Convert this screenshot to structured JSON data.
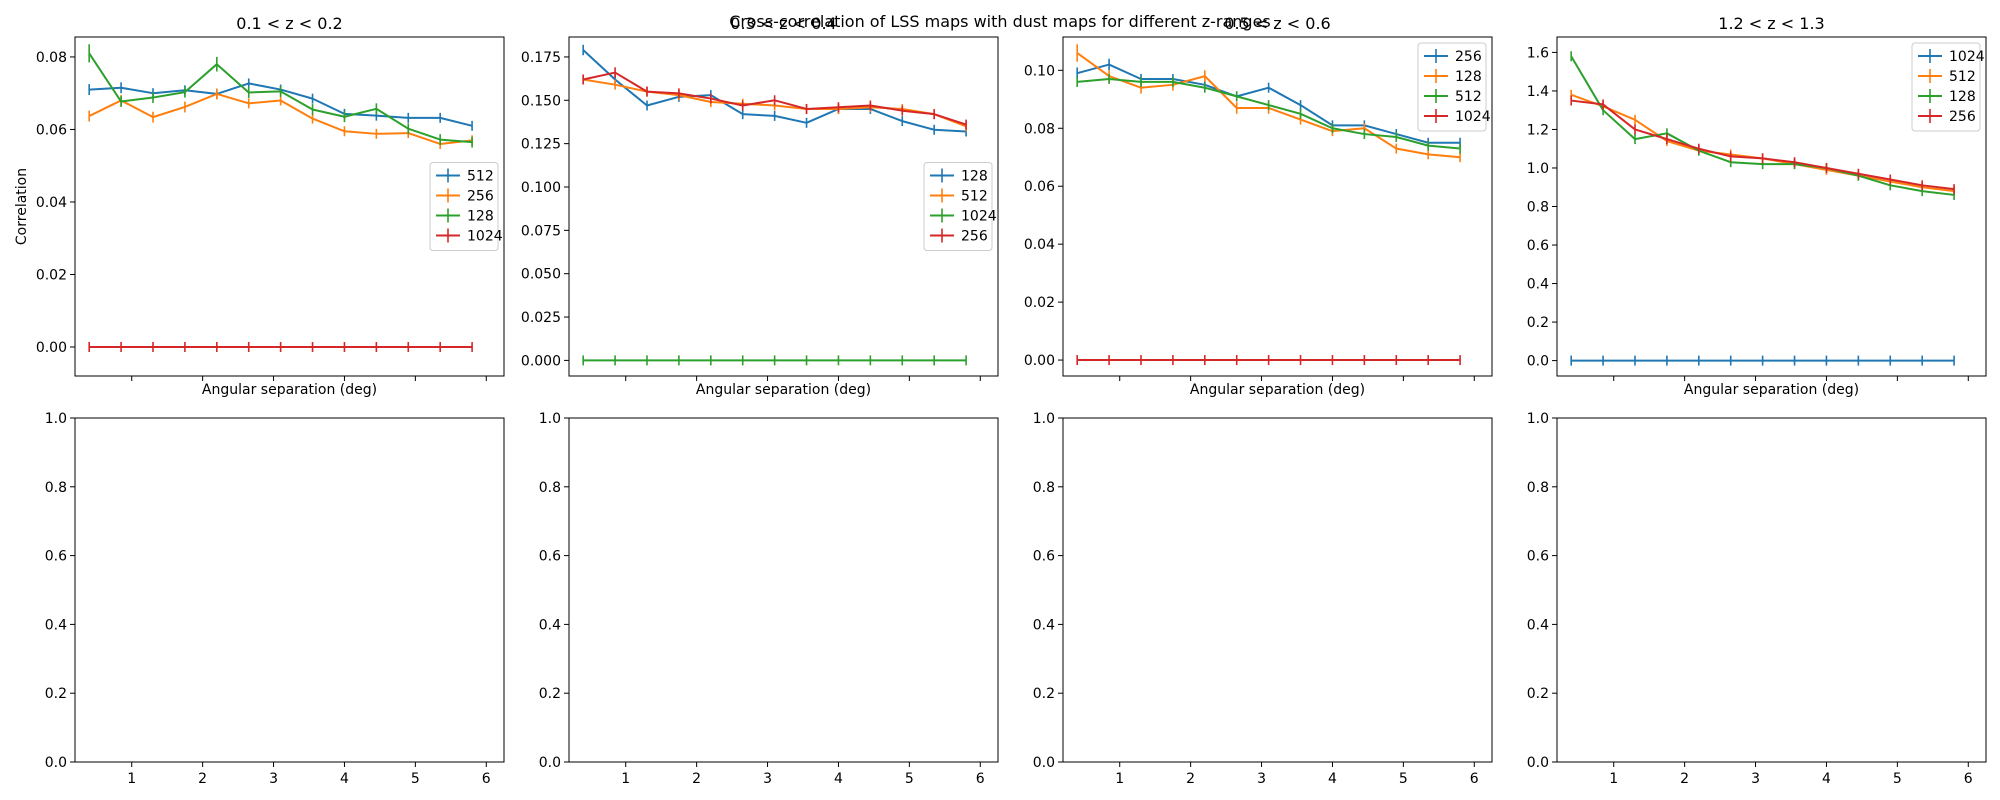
{
  "figure": {
    "suptitle": "Cross-correlation of LSS maps with dust maps for different z-ranges",
    "colors": {
      "512": "#1f77b4",
      "256": "#ff7f0e",
      "128": "#2ca02c",
      "1024": "#d62728",
      "blue": "#1f77b4",
      "orange": "#ff7f0e",
      "green": "#2ca02c",
      "red": "#d62728"
    }
  },
  "chart_data": [
    {
      "type": "line",
      "title": "0.1 < z < 0.2",
      "xlabel": "Angular separation (deg)",
      "ylabel": "Correlation",
      "xlim": [
        0.2,
        6.25
      ],
      "ylim": [
        -0.008,
        0.0855
      ],
      "yticks": [
        0.0,
        0.02,
        0.04,
        0.06,
        0.08
      ],
      "ytick_labels": [
        "0.00",
        "0.02",
        "0.04",
        "0.06",
        "0.08"
      ],
      "xticks": [
        1,
        2,
        3,
        4,
        5,
        6
      ],
      "show_xtick_labels": false,
      "legend": "center-right",
      "x": [
        0.4,
        0.85,
        1.3,
        1.75,
        2.2,
        2.65,
        3.1,
        3.55,
        4.0,
        4.45,
        4.9,
        5.35,
        5.8
      ],
      "series": [
        {
          "name": "512",
          "color": "#1f77b4",
          "values": [
            0.071,
            0.0715,
            0.07,
            0.0708,
            0.0698,
            0.0727,
            0.071,
            0.0685,
            0.0643,
            0.0638,
            0.0632,
            0.0632,
            0.061
          ],
          "err": [
            0.0015,
            0.0015,
            0.0012,
            0.0012,
            0.0012,
            0.0012,
            0.0012,
            0.0012,
            0.0012,
            0.0012,
            0.0012,
            0.0012,
            0.0012
          ]
        },
        {
          "name": "256",
          "color": "#ff7f0e",
          "values": [
            0.0637,
            0.068,
            0.0634,
            0.0662,
            0.0698,
            0.0672,
            0.068,
            0.063,
            0.0595,
            0.0588,
            0.059,
            0.056,
            0.057
          ],
          "err": [
            0.0015,
            0.0015,
            0.0015,
            0.0015,
            0.0015,
            0.0012,
            0.0012,
            0.0012,
            0.0012,
            0.0012,
            0.0012,
            0.0012,
            0.0012
          ]
        },
        {
          "name": "128",
          "color": "#2ca02c",
          "values": [
            0.081,
            0.0677,
            0.0688,
            0.0703,
            0.078,
            0.0702,
            0.0705,
            0.0655,
            0.0635,
            0.0657,
            0.0602,
            0.0572,
            0.0565
          ],
          "err": [
            0.0025,
            0.0015,
            0.0015,
            0.0015,
            0.002,
            0.0015,
            0.0015,
            0.0015,
            0.0015,
            0.0015,
            0.0015,
            0.0015,
            0.0015
          ]
        },
        {
          "name": "1024",
          "color": "#d62728",
          "values": [
            0,
            0,
            0,
            0,
            0,
            0,
            0,
            0,
            0,
            0,
            0,
            0,
            0
          ],
          "err": [
            0,
            0,
            0,
            0,
            0,
            0,
            0,
            0,
            0,
            0,
            0,
            0,
            0
          ]
        }
      ]
    },
    {
      "type": "line",
      "title": "0.3 < z < 0.4",
      "xlabel": "Angular separation (deg)",
      "ylabel": "",
      "xlim": [
        0.2,
        6.25
      ],
      "ylim": [
        -0.009,
        0.1865
      ],
      "yticks": [
        0.0,
        0.025,
        0.05,
        0.075,
        0.1,
        0.125,
        0.15,
        0.175
      ],
      "ytick_labels": [
        "0.000",
        "0.025",
        "0.050",
        "0.075",
        "0.100",
        "0.125",
        "0.150",
        "0.175"
      ],
      "xticks": [
        1,
        2,
        3,
        4,
        5,
        6
      ],
      "show_xtick_labels": false,
      "legend": "center-right",
      "x": [
        0.4,
        0.85,
        1.3,
        1.75,
        2.2,
        2.65,
        3.1,
        3.55,
        4.0,
        4.45,
        4.9,
        5.35,
        5.8
      ],
      "series": [
        {
          "name": "128",
          "color": "#1f77b4",
          "values": [
            0.179,
            0.162,
            0.147,
            0.152,
            0.153,
            0.142,
            0.141,
            0.137,
            0.145,
            0.145,
            0.138,
            0.133,
            0.132
          ],
          "err": [
            0.003,
            0.002,
            0.002,
            0.002,
            0.002,
            0.002,
            0.002,
            0.002,
            0.002,
            0.002,
            0.002,
            0.002,
            0.002
          ]
        },
        {
          "name": "512",
          "color": "#ff7f0e",
          "values": [
            0.162,
            0.159,
            0.155,
            0.153,
            0.149,
            0.148,
            0.147,
            0.145,
            0.145,
            0.146,
            0.145,
            0.142,
            0.135
          ],
          "err": [
            0.002,
            0.002,
            0.002,
            0.002,
            0.002,
            0.002,
            0.002,
            0.002,
            0.002,
            0.002,
            0.002,
            0.002,
            0.002
          ]
        },
        {
          "name": "1024",
          "color": "#2ca02c",
          "values": [
            0,
            0,
            0,
            0,
            0,
            0,
            0,
            0,
            0,
            0,
            0,
            0,
            0
          ],
          "err": [
            0,
            0,
            0,
            0,
            0,
            0,
            0,
            0,
            0,
            0,
            0,
            0,
            0
          ]
        },
        {
          "name": "256",
          "color": "#d62728",
          "values": [
            0.162,
            0.166,
            0.155,
            0.154,
            0.151,
            0.147,
            0.15,
            0.145,
            0.146,
            0.147,
            0.144,
            0.142,
            0.136
          ],
          "err": [
            0.002,
            0.003,
            0.002,
            0.002,
            0.002,
            0.002,
            0.002,
            0.002,
            0.002,
            0.002,
            0.002,
            0.002,
            0.002
          ]
        }
      ]
    },
    {
      "type": "line",
      "title": "0.5 < z < 0.6",
      "xlabel": "Angular separation (deg)",
      "ylabel": "",
      "xlim": [
        0.2,
        6.25
      ],
      "ylim": [
        -0.0055,
        0.1115
      ],
      "yticks": [
        0.0,
        0.02,
        0.04,
        0.06,
        0.08,
        0.1
      ],
      "ytick_labels": [
        "0.00",
        "0.02",
        "0.04",
        "0.06",
        "0.08",
        "0.10"
      ],
      "xticks": [
        1,
        2,
        3,
        4,
        5,
        6
      ],
      "show_xtick_labels": false,
      "legend": "top-right",
      "x": [
        0.4,
        0.85,
        1.3,
        1.75,
        2.2,
        2.65,
        3.1,
        3.55,
        4.0,
        4.45,
        4.9,
        5.35,
        5.8
      ],
      "series": [
        {
          "name": "256",
          "color": "#1f77b4",
          "values": [
            0.099,
            0.102,
            0.097,
            0.097,
            0.095,
            0.091,
            0.094,
            0.088,
            0.081,
            0.081,
            0.078,
            0.075,
            0.075
          ],
          "err": [
            0.002,
            0.002,
            0.0015,
            0.0015,
            0.0015,
            0.0015,
            0.0015,
            0.0015,
            0.0015,
            0.0015,
            0.0015,
            0.0015,
            0.0015
          ]
        },
        {
          "name": "128",
          "color": "#ff7f0e",
          "values": [
            0.106,
            0.098,
            0.094,
            0.095,
            0.098,
            0.087,
            0.087,
            0.083,
            0.079,
            0.08,
            0.073,
            0.071,
            0.07
          ],
          "err": [
            0.003,
            0.002,
            0.002,
            0.002,
            0.002,
            0.002,
            0.002,
            0.0015,
            0.0015,
            0.0015,
            0.0015,
            0.0015,
            0.0015
          ]
        },
        {
          "name": "512",
          "color": "#2ca02c",
          "values": [
            0.096,
            0.097,
            0.096,
            0.096,
            0.094,
            0.091,
            0.088,
            0.085,
            0.08,
            0.078,
            0.077,
            0.074,
            0.073
          ],
          "err": [
            0.0015,
            0.0015,
            0.0015,
            0.0015,
            0.0015,
            0.0015,
            0.0015,
            0.0015,
            0.0015,
            0.0015,
            0.0015,
            0.0015,
            0.0015
          ]
        },
        {
          "name": "1024",
          "color": "#d62728",
          "values": [
            0,
            0,
            0,
            0,
            0,
            0,
            0,
            0,
            0,
            0,
            0,
            0,
            0
          ],
          "err": [
            0,
            0,
            0,
            0,
            0,
            0,
            0,
            0,
            0,
            0,
            0,
            0,
            0
          ]
        }
      ]
    },
    {
      "type": "line",
      "title": "1.2 < z < 1.3",
      "xlabel": "Angular separation (deg)",
      "ylabel": "",
      "xlim": [
        0.2,
        6.25
      ],
      "ylim": [
        -0.08,
        1.68
      ],
      "yticks": [
        0.0,
        0.2,
        0.4,
        0.6,
        0.8,
        1.0,
        1.2,
        1.4,
        1.6
      ],
      "ytick_labels": [
        "0.0",
        "0.2",
        "0.4",
        "0.6",
        "0.8",
        "1.0",
        "1.2",
        "1.4",
        "1.6"
      ],
      "xticks": [
        1,
        2,
        3,
        4,
        5,
        6
      ],
      "show_xtick_labels": false,
      "legend": "top-right",
      "x": [
        0.4,
        0.85,
        1.3,
        1.75,
        2.2,
        2.65,
        3.1,
        3.55,
        4.0,
        4.45,
        4.9,
        5.35,
        5.8
      ],
      "series": [
        {
          "name": "1024",
          "color": "#1f77b4",
          "values": [
            0,
            0,
            0,
            0,
            0,
            0,
            0,
            0,
            0,
            0,
            0,
            0,
            0
          ],
          "err": [
            0,
            0,
            0,
            0,
            0,
            0,
            0,
            0,
            0,
            0,
            0,
            0,
            0
          ]
        },
        {
          "name": "512",
          "color": "#ff7f0e",
          "values": [
            1.38,
            1.32,
            1.25,
            1.14,
            1.09,
            1.07,
            1.05,
            1.02,
            0.99,
            0.96,
            0.93,
            0.9,
            0.88
          ],
          "err": [
            0.008,
            0.008,
            0.008,
            0.008,
            0.008,
            0.008,
            0.008,
            0.008,
            0.008,
            0.008,
            0.008,
            0.008,
            0.008
          ]
        },
        {
          "name": "128",
          "color": "#2ca02c",
          "values": [
            1.58,
            1.3,
            1.15,
            1.18,
            1.09,
            1.03,
            1.02,
            1.02,
            1.0,
            0.96,
            0.91,
            0.88,
            0.86
          ],
          "err": [
            0.008,
            0.008,
            0.008,
            0.008,
            0.008,
            0.008,
            0.008,
            0.008,
            0.008,
            0.008,
            0.008,
            0.008,
            0.008
          ]
        },
        {
          "name": "256",
          "color": "#d62728",
          "values": [
            1.35,
            1.33,
            1.2,
            1.15,
            1.1,
            1.06,
            1.05,
            1.03,
            1.0,
            0.97,
            0.94,
            0.91,
            0.89
          ],
          "err": [
            0.008,
            0.008,
            0.008,
            0.008,
            0.008,
            0.008,
            0.008,
            0.008,
            0.008,
            0.008,
            0.008,
            0.008,
            0.008
          ]
        }
      ]
    },
    {
      "type": "line",
      "title": "",
      "xlabel": "",
      "ylabel": "",
      "xlim": [
        0.2,
        6.25
      ],
      "ylim": [
        0.0,
        1.0
      ],
      "yticks": [
        0.0,
        0.2,
        0.4,
        0.6,
        0.8,
        1.0
      ],
      "ytick_labels": [
        "0.0",
        "0.2",
        "0.4",
        "0.6",
        "0.8",
        "1.0"
      ],
      "xticks": [
        1,
        2,
        3,
        4,
        5,
        6
      ],
      "xtick_labels": [
        "1",
        "2",
        "3",
        "4",
        "5",
        "6"
      ],
      "show_xtick_labels": true,
      "series": []
    },
    {
      "type": "line",
      "title": "",
      "xlabel": "",
      "ylabel": "",
      "xlim": [
        0.2,
        6.25
      ],
      "ylim": [
        0.0,
        1.0
      ],
      "yticks": [
        0.0,
        0.2,
        0.4,
        0.6,
        0.8,
        1.0
      ],
      "ytick_labels": [
        "0.0",
        "0.2",
        "0.4",
        "0.6",
        "0.8",
        "1.0"
      ],
      "xticks": [
        1,
        2,
        3,
        4,
        5,
        6
      ],
      "xtick_labels": [
        "1",
        "2",
        "3",
        "4",
        "5",
        "6"
      ],
      "show_xtick_labels": true,
      "series": []
    },
    {
      "type": "line",
      "title": "",
      "xlabel": "",
      "ylabel": "",
      "xlim": [
        0.2,
        6.25
      ],
      "ylim": [
        0.0,
        1.0
      ],
      "yticks": [
        0.0,
        0.2,
        0.4,
        0.6,
        0.8,
        1.0
      ],
      "ytick_labels": [
        "0.0",
        "0.2",
        "0.4",
        "0.6",
        "0.8",
        "1.0"
      ],
      "xticks": [
        1,
        2,
        3,
        4,
        5,
        6
      ],
      "xtick_labels": [
        "1",
        "2",
        "3",
        "4",
        "5",
        "6"
      ],
      "show_xtick_labels": true,
      "series": []
    },
    {
      "type": "line",
      "title": "",
      "xlabel": "",
      "ylabel": "",
      "xlim": [
        0.2,
        6.25
      ],
      "ylim": [
        0.0,
        1.0
      ],
      "yticks": [
        0.0,
        0.2,
        0.4,
        0.6,
        0.8,
        1.0
      ],
      "ytick_labels": [
        "0.0",
        "0.2",
        "0.4",
        "0.6",
        "0.8",
        "1.0"
      ],
      "xticks": [
        1,
        2,
        3,
        4,
        5,
        6
      ],
      "xtick_labels": [
        "1",
        "2",
        "3",
        "4",
        "5",
        "6"
      ],
      "show_xtick_labels": true,
      "series": []
    }
  ]
}
